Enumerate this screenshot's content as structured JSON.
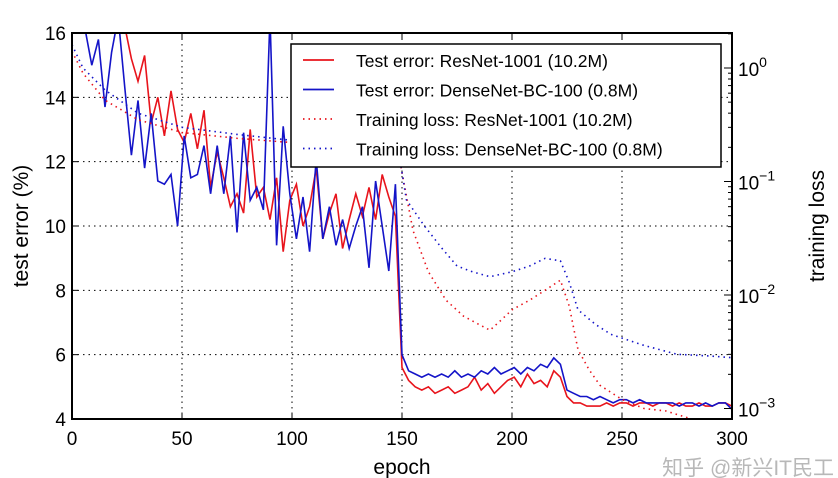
{
  "chart_data": {
    "type": "line",
    "xlabel": "epoch",
    "ylabel": "test error (%)",
    "y2label": "training loss",
    "xlim": [
      0,
      300
    ],
    "ylim": [
      4,
      16
    ],
    "y2scale": "log",
    "grid": true,
    "legend_placement": "top-right",
    "xticks": [
      "0",
      "50",
      "100",
      "150",
      "200",
      "250",
      "300"
    ],
    "yticks": [
      "4",
      "6",
      "8",
      "10",
      "12",
      "14",
      "16"
    ],
    "y2ticks": [
      {
        "base": "10",
        "exp": "0"
      },
      {
        "base": "10",
        "exp": "−1"
      },
      {
        "base": "10",
        "exp": "−2"
      },
      {
        "base": "10",
        "exp": "−3"
      }
    ],
    "x": [
      0,
      3,
      6,
      9,
      12,
      15,
      18,
      21,
      24,
      27,
      30,
      33,
      36,
      39,
      42,
      45,
      48,
      51,
      54,
      57,
      60,
      63,
      66,
      69,
      72,
      75,
      78,
      81,
      84,
      87,
      90,
      93,
      96,
      99,
      102,
      105,
      108,
      111,
      114,
      117,
      120,
      123,
      126,
      129,
      132,
      135,
      138,
      141,
      144,
      147,
      150,
      153,
      156,
      159,
      162,
      165,
      168,
      171,
      174,
      177,
      180,
      183,
      186,
      189,
      192,
      195,
      198,
      201,
      204,
      207,
      210,
      213,
      216,
      219,
      222,
      225,
      228,
      231,
      234,
      237,
      240,
      243,
      246,
      249,
      252,
      255,
      258,
      261,
      264,
      267,
      270,
      273,
      276,
      279,
      282,
      285,
      288,
      291,
      294,
      297,
      300
    ],
    "series": [
      {
        "name": "Test error: ResNet-1001 (10.2M)",
        "axis": "left",
        "color": "#e8141c",
        "style": "solid",
        "values": [
          17,
          17,
          17,
          17,
          17,
          17,
          17,
          17,
          16.2,
          15.2,
          14.5,
          15.3,
          13.2,
          14.0,
          12.8,
          14.2,
          13.0,
          12.6,
          13.5,
          12.4,
          13.6,
          11.2,
          12.3,
          11.5,
          10.6,
          11.0,
          10.4,
          13.0,
          10.9,
          11.2,
          10.2,
          11.5,
          9.2,
          10.8,
          11.3,
          10.0,
          10.6,
          11.8,
          9.6,
          10.4,
          11.0,
          9.3,
          10.2,
          11.0,
          10.3,
          11.2,
          10.2,
          11.6,
          10.9,
          10.3,
          5.6,
          5.2,
          5.0,
          4.9,
          5.0,
          4.8,
          4.9,
          5.0,
          4.8,
          4.9,
          5.0,
          5.3,
          4.9,
          5.1,
          4.8,
          5.0,
          5.2,
          5.3,
          5.0,
          5.4,
          5.1,
          5.2,
          5.0,
          5.5,
          5.3,
          4.7,
          4.5,
          4.5,
          4.4,
          4.4,
          4.4,
          4.5,
          4.4,
          4.5,
          4.5,
          4.4,
          4.5,
          4.5,
          4.4,
          4.5,
          4.5,
          4.4,
          4.5,
          4.4,
          4.4,
          4.5,
          4.4,
          4.4,
          4.5,
          4.5,
          4.4
        ]
      },
      {
        "name": "Test error: DenseNet-BC-100 (0.8M)",
        "axis": "left",
        "color": "#1414c8",
        "style": "solid",
        "values": [
          17,
          17,
          16.1,
          15.0,
          15.8,
          13.7,
          15.4,
          16.5,
          14.3,
          12.2,
          13.9,
          11.8,
          13.5,
          11.4,
          11.3,
          11.6,
          10.0,
          12.8,
          11.5,
          11.6,
          12.5,
          11.0,
          12.5,
          11.0,
          12.8,
          9.8,
          12.9,
          10.8,
          11.2,
          10.5,
          16.5,
          9.4,
          13.1,
          11.0,
          9.6,
          10.9,
          9.2,
          12.1,
          9.6,
          10.6,
          9.4,
          10.2,
          9.3,
          10.0,
          10.6,
          8.7,
          11.4,
          10.0,
          8.6,
          11.3,
          6.0,
          5.5,
          5.4,
          5.3,
          5.4,
          5.3,
          5.4,
          5.3,
          5.5,
          5.3,
          5.4,
          5.3,
          5.5,
          5.4,
          5.6,
          5.4,
          5.5,
          5.6,
          5.4,
          5.6,
          5.5,
          5.7,
          5.6,
          5.9,
          5.7,
          4.9,
          4.8,
          4.7,
          4.7,
          4.6,
          4.7,
          4.6,
          4.5,
          4.6,
          4.6,
          4.5,
          4.6,
          4.5,
          4.5,
          4.5,
          4.5,
          4.5,
          4.4,
          4.5,
          4.5,
          4.4,
          4.5,
          4.4,
          4.5,
          4.5,
          4.3
        ]
      },
      {
        "name": "Training loss: ResNet-1001 (10.2M)",
        "axis": "right",
        "color": "#e8141c",
        "style": "dotted",
        "x": [
          0,
          5,
          15,
          30,
          50,
          75,
          100,
          125,
          148,
          150,
          155,
          162,
          170,
          178,
          185,
          190,
          195,
          200,
          208,
          215,
          222,
          226,
          230,
          235,
          240,
          250,
          260,
          270,
          285,
          300
        ],
        "values": [
          1.4,
          0.9,
          0.52,
          0.35,
          0.27,
          0.24,
          0.22,
          0.21,
          0.2,
          0.12,
          0.037,
          0.016,
          0.009,
          0.0065,
          0.0055,
          0.0049,
          0.006,
          0.0074,
          0.009,
          0.011,
          0.0135,
          0.008,
          0.0033,
          0.0022,
          0.0016,
          0.0012,
          0.001,
          0.00095,
          0.00077,
          0.0007
        ]
      },
      {
        "name": "Training loss: DenseNet-BC-100 (0.8M)",
        "axis": "right",
        "color": "#1414c8",
        "style": "dotted",
        "x": [
          0,
          5,
          15,
          30,
          50,
          75,
          100,
          125,
          148,
          150,
          152,
          160,
          168,
          175,
          182,
          190,
          200,
          208,
          215,
          222,
          226,
          230,
          238,
          245,
          260,
          275,
          290,
          300
        ],
        "values": [
          1.6,
          1.0,
          0.64,
          0.4,
          0.3,
          0.26,
          0.23,
          0.21,
          0.2,
          0.12,
          0.069,
          0.041,
          0.026,
          0.018,
          0.016,
          0.0145,
          0.016,
          0.018,
          0.021,
          0.02,
          0.013,
          0.0074,
          0.0055,
          0.0045,
          0.0036,
          0.003,
          0.0029,
          0.0028
        ]
      }
    ]
  },
  "watermark": "知乎 @新兴IT民工"
}
